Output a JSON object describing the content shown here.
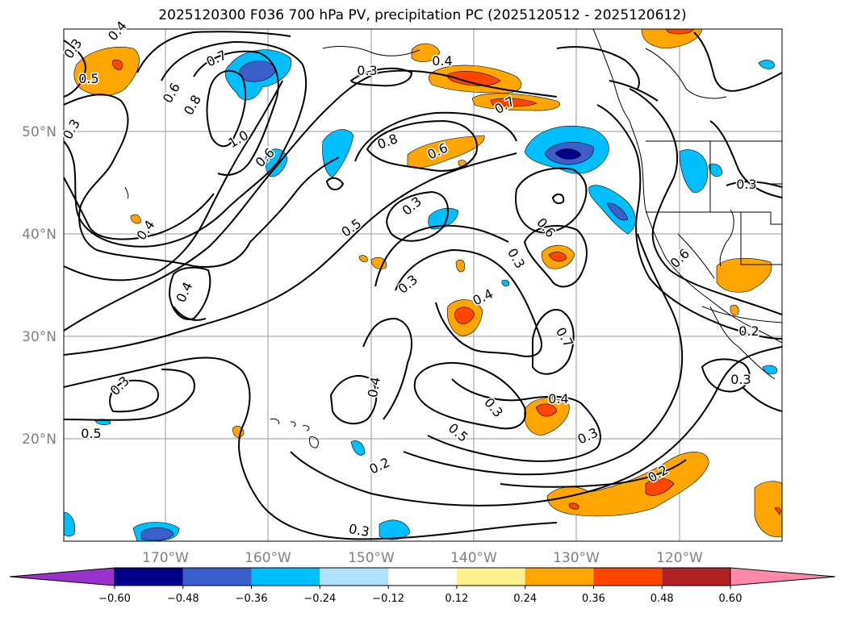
{
  "title": "2025120300 F036 700 hPa PV, precipitation PC (2025120512 - 2025120612)",
  "latitude_labels": [
    "50°N",
    "40°N",
    "30°N",
    "20°N"
  ],
  "longitude_labels": [
    "170°W",
    "160°W",
    "150°W",
    "140°W",
    "130°W",
    "120°W"
  ],
  "contour_labels": [
    "0.3",
    "0.4",
    "0.5",
    "0.7",
    "0.6",
    "0.8",
    "1.0",
    "0.6",
    "0.3",
    "0.4",
    "0.6",
    "0.7",
    "0.3",
    "0.5",
    "0.8",
    "0.4",
    "0.3",
    "0.4",
    "0.3",
    "0.4",
    "0.3",
    "0.6",
    "0.7",
    "0.6",
    "0.3",
    "0.2",
    "0.3",
    "0.3",
    "0.5",
    "0.4",
    "0.3",
    "0.5",
    "0.4",
    "0.3",
    "0.2",
    "0.2",
    "0.3"
  ],
  "colorbar": {
    "ticks": [
      "−0.60",
      "−0.48",
      "−0.36",
      "−0.24",
      "−0.12",
      "0.12",
      "0.24",
      "0.36",
      "0.48",
      "0.60"
    ],
    "colors": [
      "#9932cc",
      "#00008b",
      "#3a5fcd",
      "#00bfff",
      "#b0e2ff",
      "#ffffff",
      "#fff08f",
      "#ffa500",
      "#ff4500",
      "#b22222",
      "#ff88aa"
    ]
  }
}
